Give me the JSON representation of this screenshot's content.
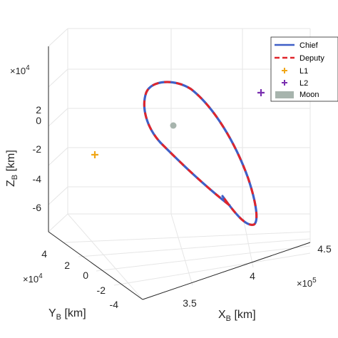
{
  "chart_data": {
    "type": "line",
    "projection": "3d",
    "grid": true,
    "legend_position": "top-right",
    "axes": {
      "x": {
        "label": "X",
        "sub": "B",
        "unit": "[km]",
        "ticks": [
          "3.5",
          "4",
          "4.5"
        ],
        "multiplier": "×10",
        "exponent": "5",
        "range": [
          340000,
          460000
        ]
      },
      "y": {
        "label": "Y",
        "sub": "B",
        "unit": "[km]",
        "ticks": [
          "-4",
          "-2",
          "0",
          "2",
          "4"
        ],
        "multiplier": "×10",
        "exponent": "4",
        "range": [
          -50000,
          50000
        ]
      },
      "z": {
        "label": "Z",
        "sub": "B",
        "unit": "[km]",
        "ticks": [
          "2",
          "0",
          "-2",
          "-4",
          "-6"
        ],
        "multiplier": "×10",
        "exponent": "4",
        "range": [
          -80000,
          30000
        ]
      }
    },
    "series": [
      {
        "name": "Chief",
        "color": "#3f5fc7",
        "style": "solid"
      },
      {
        "name": "Deputy",
        "color": "#e0252b",
        "style": "dashed"
      },
      {
        "name": "L1",
        "color": "#f0a617",
        "marker": "plus"
      },
      {
        "name": "L2",
        "color": "#7a2fb0",
        "marker": "plus"
      },
      {
        "name": "Moon",
        "color": "#a7b4ad",
        "marker": "sphere"
      }
    ]
  }
}
